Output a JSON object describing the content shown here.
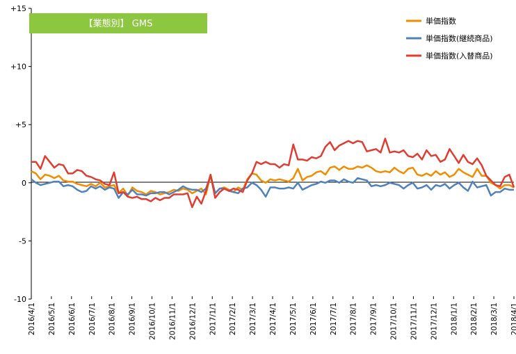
{
  "chart_data": {
    "type": "line",
    "title": "【業態別】 GMS",
    "title_box_color": "#8dc63f",
    "xlabel": "",
    "ylabel": "",
    "ylim": [
      -10,
      15
    ],
    "y_ticks": [
      {
        "value": 15,
        "label": "+15"
      },
      {
        "value": 10,
        "label": "+10"
      },
      {
        "value": 5,
        "label": "+5"
      },
      {
        "value": 0,
        "label": "0"
      },
      {
        "value": -5,
        "label": "-5"
      },
      {
        "value": -10,
        "label": "-10"
      }
    ],
    "x_tick_labels": [
      "2016/4/1",
      "2016/5/1",
      "2016/6/1",
      "2016/7/1",
      "2016/8/1",
      "2016/9/1",
      "2016/10/1",
      "2016/11/1",
      "2016/12/1",
      "2017/1/1",
      "2017/2/1",
      "2017/3/1",
      "2017/4/1",
      "2017/5/1",
      "2017/6/1",
      "2017/7/1",
      "2017/8/1",
      "2017/9/1",
      "2017/10/1",
      "2017/11/1",
      "2017/12/1",
      "2018/1/1",
      "2018/2/1",
      "2018/3/1",
      "2018/4/1"
    ],
    "x_axis_note": "Weekly observations; tick labels mark the first of each month from 2016/4/1 to 2018/4/1. Each series has one value per week (106 weeks).",
    "grid": false,
    "legend_position": "top-right",
    "series": [
      {
        "name": "単価指数",
        "color": "#f28c00",
        "values": [
          1.0,
          0.8,
          0.3,
          0.7,
          0.6,
          0.4,
          0.6,
          0.2,
          0.1,
          0.1,
          -0.1,
          -0.2,
          -0.3,
          -0.1,
          -0.3,
          0.0,
          -0.4,
          -0.3,
          -0.2,
          -0.9,
          -0.5,
          -1.1,
          -0.4,
          -0.7,
          -0.8,
          -1.0,
          -0.7,
          -0.8,
          -1.0,
          -0.9,
          -0.8,
          -0.6,
          -0.7,
          -0.5,
          -0.6,
          -0.9,
          -0.7,
          -0.5,
          -1.0,
          0.7,
          -0.9,
          -0.5,
          -0.4,
          -0.6,
          -0.8,
          -0.4,
          -0.6,
          0.3,
          0.8,
          0.7,
          0.2,
          0.0,
          0.3,
          0.2,
          0.3,
          0.2,
          0.1,
          0.4,
          1.2,
          0.2,
          0.5,
          0.6,
          0.9,
          1.0,
          0.7,
          1.3,
          1.4,
          1.1,
          1.4,
          1.2,
          1.2,
          1.4,
          1.3,
          1.5,
          1.3,
          1.0,
          0.9,
          1.0,
          0.9,
          1.3,
          1.0,
          0.8,
          1.2,
          1.3,
          0.7,
          0.6,
          0.8,
          0.6,
          1.0,
          0.7,
          0.9,
          0.5,
          0.7,
          1.2,
          0.9,
          0.7,
          0.5,
          1.2,
          0.6,
          0.6,
          0.0,
          -0.2,
          -0.5,
          -0.2,
          -0.2,
          -0.4
        ]
      },
      {
        "name": "単価指数(継続商品)",
        "color": "#4f81bd",
        "values": [
          0.3,
          0.0,
          -0.2,
          -0.1,
          0.0,
          0.1,
          0.1,
          -0.3,
          -0.2,
          -0.3,
          -0.6,
          -0.8,
          -0.7,
          -0.3,
          -0.5,
          -0.3,
          -0.6,
          -0.4,
          -0.5,
          -1.3,
          -0.8,
          -1.0,
          -0.6,
          -1.0,
          -1.0,
          -1.1,
          -0.9,
          -0.9,
          -0.8,
          -0.8,
          -1.0,
          -0.8,
          -0.6,
          -0.3,
          -0.5,
          -0.6,
          -0.6,
          -0.8,
          -0.5,
          0.6,
          -0.9,
          -0.5,
          -0.5,
          -0.7,
          -0.8,
          -0.9,
          -0.5,
          -0.4,
          0.0,
          -0.2,
          -0.6,
          -1.2,
          -0.4,
          -0.4,
          -0.5,
          -0.5,
          -0.4,
          -0.5,
          0.0,
          -0.6,
          -0.4,
          -0.2,
          -0.1,
          0.1,
          0.0,
          0.2,
          0.2,
          0.0,
          0.3,
          0.1,
          0.0,
          0.4,
          0.3,
          0.2,
          -0.3,
          -0.2,
          -0.3,
          -0.2,
          0.0,
          -0.1,
          -0.2,
          -0.5,
          -0.2,
          0.0,
          -0.5,
          -0.4,
          -0.2,
          -0.6,
          -0.2,
          -0.3,
          -0.1,
          -0.5,
          -0.2,
          0.0,
          -0.4,
          -0.7,
          0.1,
          -0.4,
          -0.3,
          -0.2,
          -1.1,
          -0.8,
          -0.8,
          -0.5,
          -0.6,
          -0.6
        ]
      },
      {
        "name": "単価指数(入替商品)",
        "color": "#e03c31",
        "values": [
          1.8,
          1.8,
          1.2,
          2.3,
          1.8,
          1.3,
          1.6,
          1.5,
          0.8,
          0.8,
          1.1,
          1.0,
          0.6,
          0.5,
          0.3,
          0.2,
          -0.1,
          -0.2,
          0.9,
          -0.9,
          -0.8,
          -1.2,
          -1.3,
          -1.2,
          -1.4,
          -1.4,
          -1.6,
          -1.3,
          -1.5,
          -1.3,
          -1.3,
          -1.0,
          -1.0,
          -1.0,
          -0.9,
          -2.1,
          -1.2,
          -1.8,
          -0.7,
          0.7,
          -1.3,
          -0.8,
          -0.5,
          -0.7,
          -0.5,
          -0.6,
          -0.8,
          0.2,
          0.8,
          1.8,
          1.6,
          1.8,
          1.6,
          1.6,
          1.3,
          1.6,
          1.5,
          3.3,
          2.0,
          2.0,
          1.9,
          2.2,
          2.1,
          2.3,
          3.1,
          3.5,
          2.8,
          3.2,
          3.4,
          3.6,
          3.4,
          3.6,
          3.5,
          2.7,
          2.8,
          2.9,
          2.6,
          3.8,
          2.6,
          2.7,
          2.6,
          2.8,
          2.3,
          2.2,
          2.5,
          2.0,
          2.8,
          2.3,
          2.4,
          1.8,
          2.0,
          2.9,
          2.3,
          1.7,
          2.4,
          1.8,
          1.6,
          2.1,
          1.5,
          0.6,
          0.2,
          -0.2,
          -0.3,
          0.5,
          0.7,
          -0.4
        ]
      }
    ]
  }
}
